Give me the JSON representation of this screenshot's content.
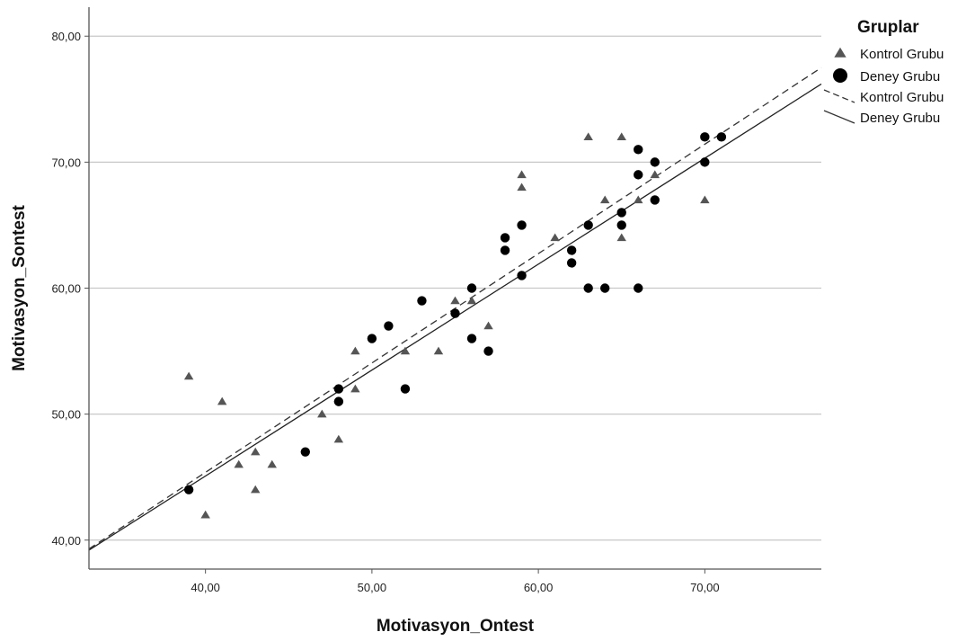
{
  "chart_data": {
    "type": "scatter",
    "xlabel": "Motivasyon_Ontest",
    "ylabel": "Motivasyon_Sontest",
    "xlim": [
      33,
      77
    ],
    "ylim": [
      37.7,
      82.3
    ],
    "xticks": [
      40,
      50,
      60,
      70
    ],
    "yticks": [
      40,
      50,
      60,
      70,
      80
    ],
    "xtick_labels": [
      "40,00",
      "50,00",
      "60,00",
      "70,00"
    ],
    "ytick_labels": [
      "40,00",
      "50,00",
      "60,00",
      "70,00",
      "80,00"
    ],
    "grid": "horizontal",
    "legend": {
      "title": "Gruplar",
      "placement": "right",
      "entries": [
        {
          "label": "Kontrol Grubu",
          "kind": "marker",
          "marker": "triangle"
        },
        {
          "label": "Deney Grubu",
          "kind": "marker",
          "marker": "circle"
        },
        {
          "label": "Kontrol Grubu",
          "kind": "line",
          "dash": "dashed"
        },
        {
          "label": "Deney Grubu",
          "kind": "line",
          "dash": "solid"
        }
      ]
    },
    "colors": {
      "kontrol": "#555555",
      "deney": "#000000",
      "grid": "#c8c8c8",
      "axis": "#555555"
    },
    "series": [
      {
        "name": "Kontrol Grubu",
        "marker": "triangle",
        "points": [
          [
            39,
            53
          ],
          [
            40,
            42
          ],
          [
            41,
            51
          ],
          [
            42,
            46
          ],
          [
            43,
            47
          ],
          [
            43,
            44
          ],
          [
            44,
            46
          ],
          [
            47,
            50
          ],
          [
            48,
            48
          ],
          [
            49,
            55
          ],
          [
            49,
            52
          ],
          [
            52,
            55
          ],
          [
            54,
            55
          ],
          [
            55,
            59
          ],
          [
            56,
            59
          ],
          [
            57,
            57
          ],
          [
            59,
            69
          ],
          [
            59,
            68
          ],
          [
            61,
            64
          ],
          [
            63,
            72
          ],
          [
            64,
            67
          ],
          [
            65,
            72
          ],
          [
            65,
            64
          ],
          [
            66,
            67
          ],
          [
            67,
            69
          ],
          [
            70,
            67
          ]
        ]
      },
      {
        "name": "Deney Grubu",
        "marker": "circle",
        "points": [
          [
            39,
            44
          ],
          [
            46,
            47
          ],
          [
            48,
            52
          ],
          [
            48,
            51
          ],
          [
            50,
            56
          ],
          [
            51,
            57
          ],
          [
            52,
            52
          ],
          [
            53,
            59
          ],
          [
            55,
            58
          ],
          [
            56,
            60
          ],
          [
            56,
            56
          ],
          [
            57,
            55
          ],
          [
            58,
            64
          ],
          [
            58,
            63
          ],
          [
            59,
            65
          ],
          [
            59,
            61
          ],
          [
            62,
            63
          ],
          [
            62,
            62
          ],
          [
            63,
            65
          ],
          [
            63,
            60
          ],
          [
            64,
            60
          ],
          [
            65,
            66
          ],
          [
            65,
            65
          ],
          [
            66,
            71
          ],
          [
            66,
            69
          ],
          [
            66,
            60
          ],
          [
            67,
            70
          ],
          [
            67,
            67
          ],
          [
            70,
            72
          ],
          [
            70,
            70
          ],
          [
            71,
            72
          ]
        ]
      }
    ],
    "fit_lines": [
      {
        "name": "Kontrol Grubu",
        "dash": "dashed",
        "points": [
          [
            33,
            39.3
          ],
          [
            77,
            77.5
          ]
        ]
      },
      {
        "name": "Deney Grubu",
        "dash": "solid",
        "points": [
          [
            33,
            39.2
          ],
          [
            77,
            76.2
          ]
        ]
      }
    ]
  }
}
